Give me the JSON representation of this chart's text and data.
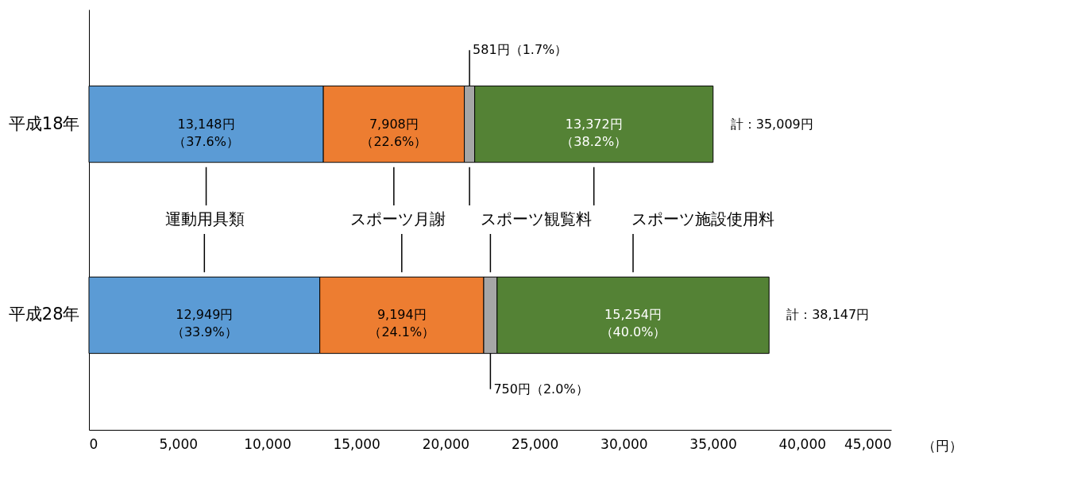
{
  "chart_data": {
    "type": "bar",
    "orientation": "horizontal",
    "stacked": true,
    "legend": "center",
    "categories": [
      "平成18年",
      "平成28年"
    ],
    "xlim": [
      0,
      45000
    ],
    "xticks": [
      0,
      {
        "value": 5000,
        "label": "5,000"
      },
      {
        "value": 10000,
        "label": "10,000"
      },
      {
        "value": 15000,
        "label": "15,000"
      },
      {
        "value": 20000,
        "label": "20,000"
      },
      {
        "value": 25000,
        "label": "25,000"
      },
      {
        "value": 30000,
        "label": "30,000"
      },
      {
        "value": 35000,
        "label": "35,000"
      },
      {
        "value": 40000,
        "label": "40,000"
      },
      {
        "value": 45000,
        "label": "45,000"
      }
    ],
    "xlabel": "（円）",
    "series": [
      {
        "name": "運動用具類",
        "color": "#5b9bd5",
        "values": [
          13148,
          12949
        ],
        "value_labels": [
          "13,148円（37.6%）",
          "12,949円（33.9%）"
        ]
      },
      {
        "name": "スポーツ月謝",
        "color": "#ed7d31",
        "values": [
          7908,
          9194
        ],
        "value_labels": [
          "7,908円（22.6%）",
          "9,194円（24.1%）"
        ]
      },
      {
        "name": "スポーツ観覧料",
        "color": "#a6a6a6",
        "values": [
          581,
          750
        ],
        "value_labels": [
          "581円（1.7%）",
          "750円（2.0%）"
        ]
      },
      {
        "name": "スポーツ施設使用料",
        "color": "#548235",
        "values": [
          13372,
          15254
        ],
        "value_labels": [
          "13,372円（38.2%）",
          "15,254円（40.0%）"
        ]
      }
    ],
    "totals": [
      "計：35,009円",
      "計：38,147円"
    ]
  }
}
